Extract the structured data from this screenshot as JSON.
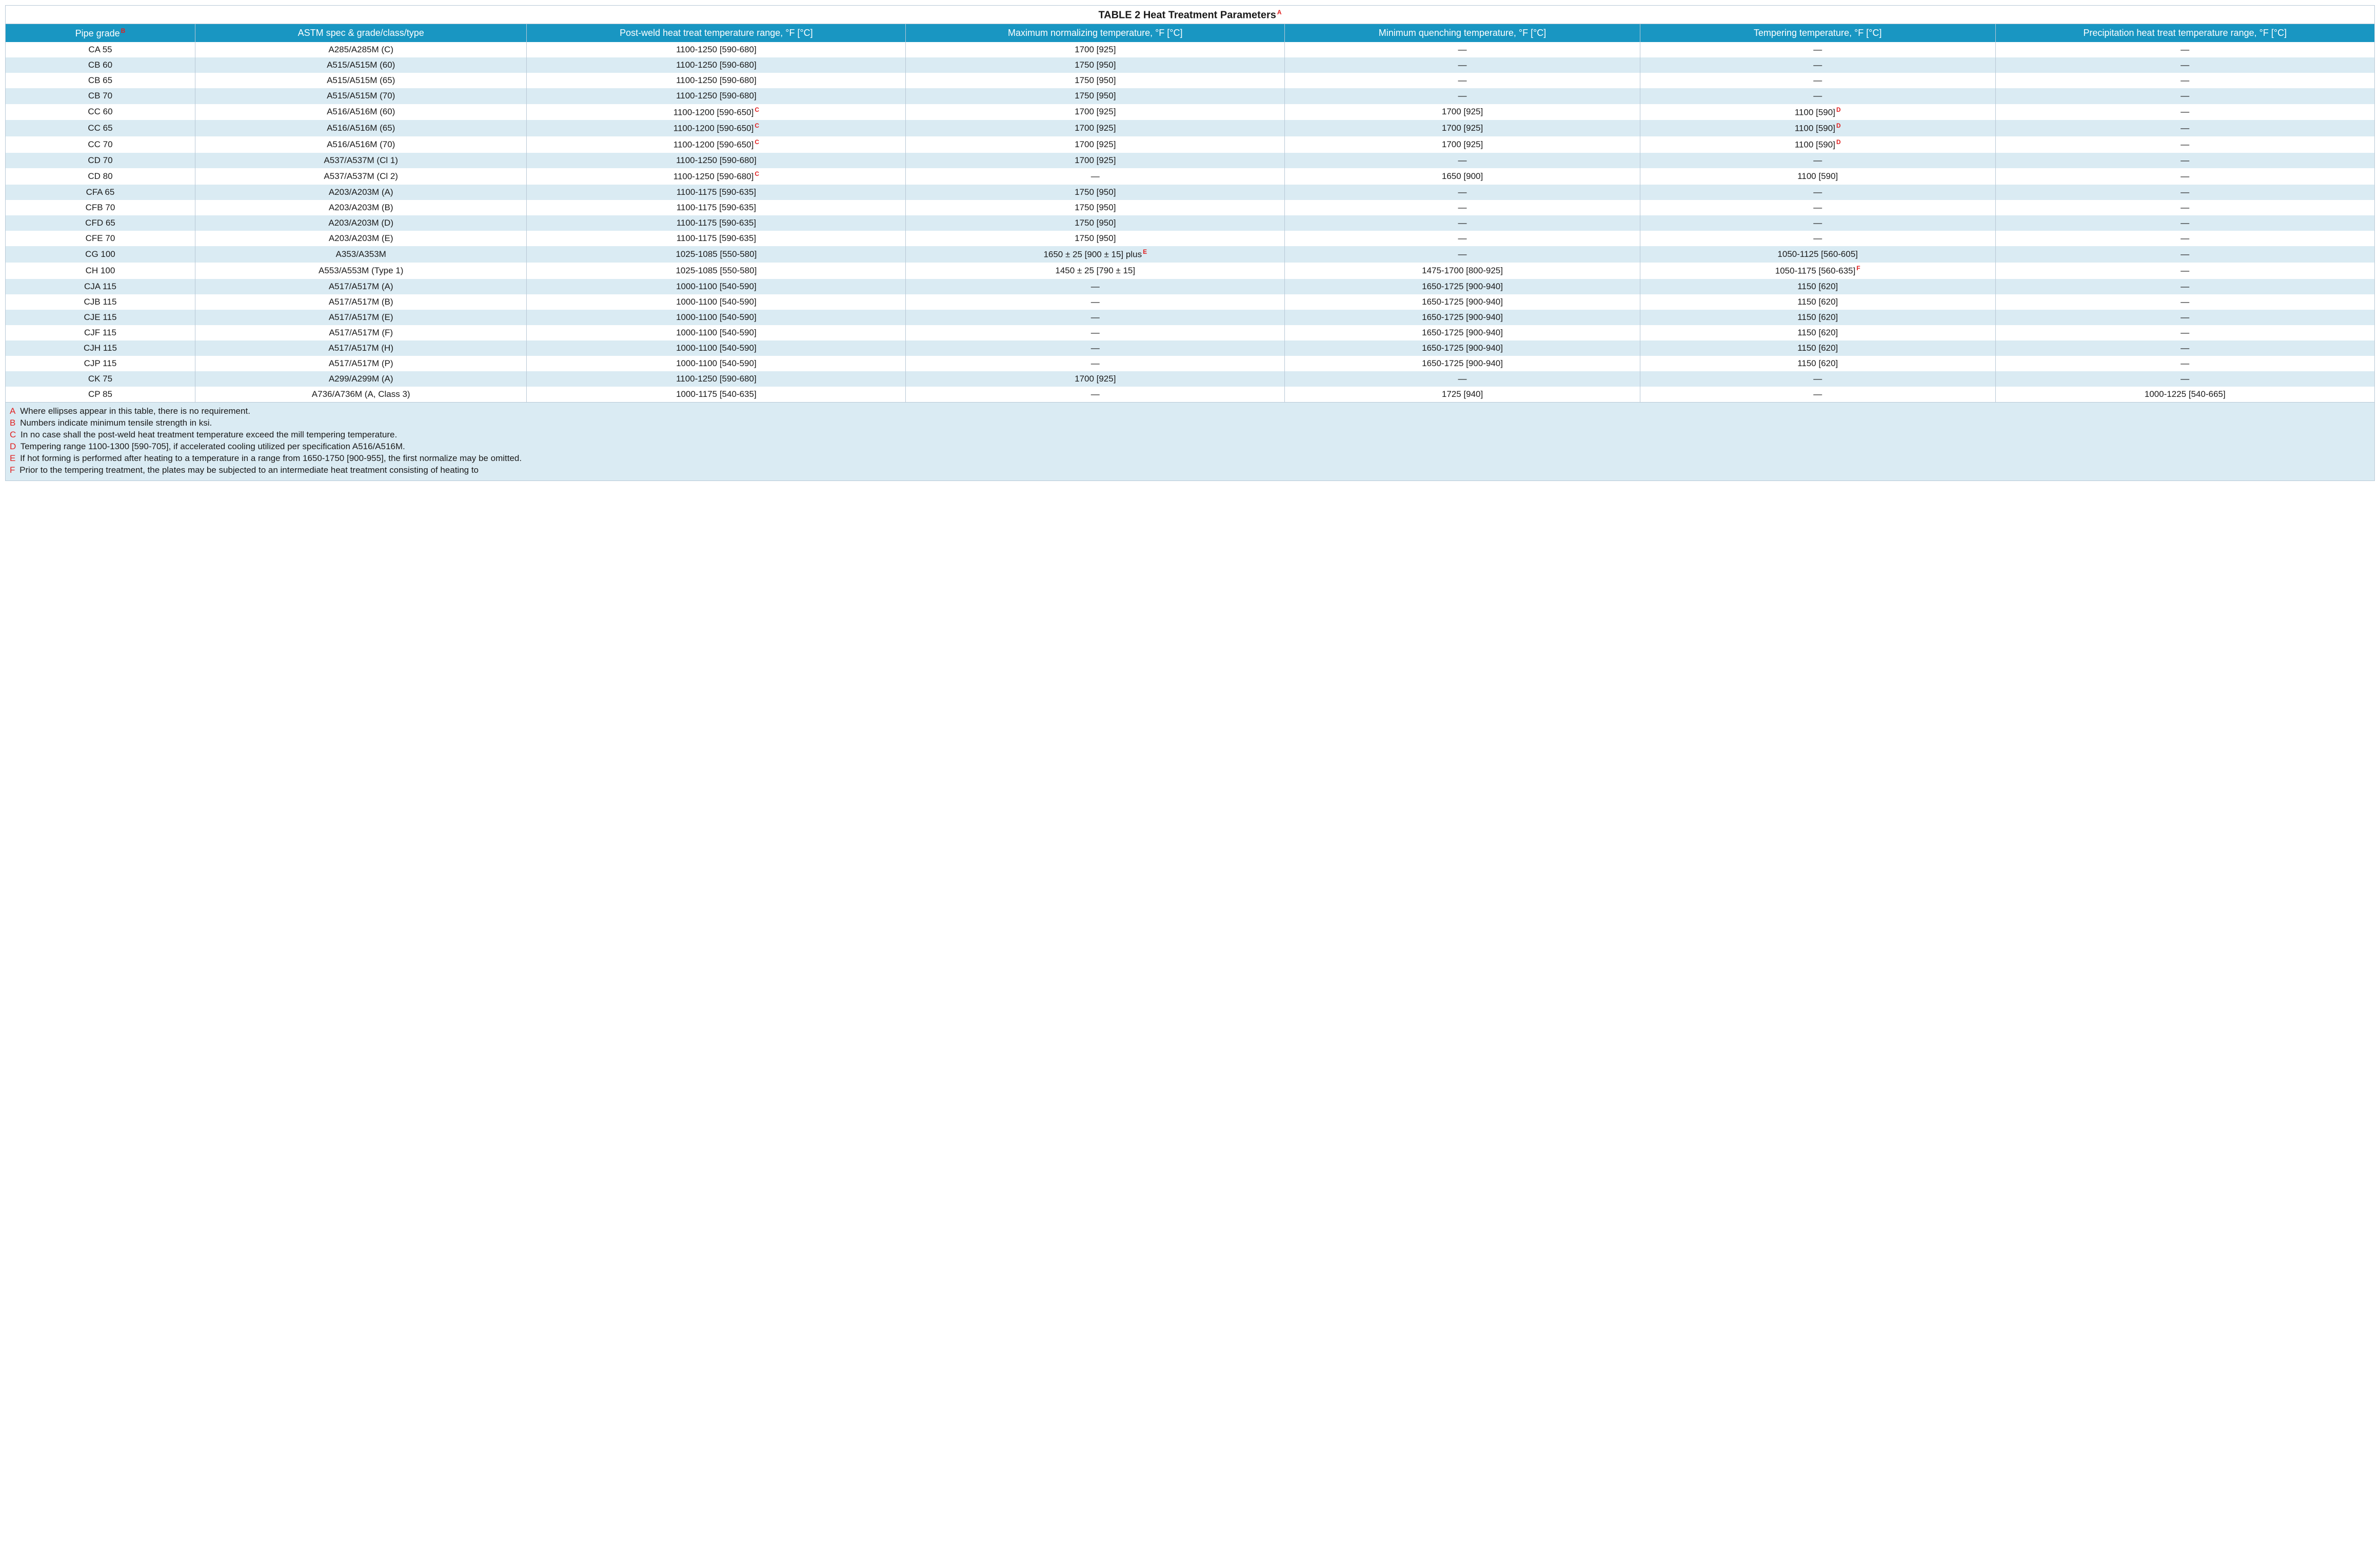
{
  "title": "TABLE 2 Heat Treatment Parameters",
  "title_sup": "A",
  "colors": {
    "header_bg": "#1996c2",
    "header_fg": "#ffffff",
    "row_alt_bg": "#daebf3",
    "row_bg": "#ffffff",
    "border": "#b8c8d6",
    "sup": "#e02020",
    "text": "#1a1a1a"
  },
  "col_widths_pct": [
    8,
    14,
    16,
    16,
    15,
    15,
    16
  ],
  "columns": [
    {
      "label": "Pipe grade",
      "sup": "B"
    },
    {
      "label": "ASTM spec & grade/class/type"
    },
    {
      "label": "Post-weld heat treat temperature range, °F [°C]"
    },
    {
      "label": "Maximum normalizing temperature, °F [°C]"
    },
    {
      "label": "Minimum quenching temperature, °F [°C]"
    },
    {
      "label": "Tempering temperature, °F [°C]"
    },
    {
      "label": "Precipitation heat treat temperature range, °F [°C]"
    }
  ],
  "rows": [
    {
      "c": [
        "CA 55",
        "A285/A285M (C)",
        "1100-1250 [590-680]",
        "1700 [925]",
        "—",
        "—",
        "—"
      ]
    },
    {
      "c": [
        "CB 60",
        "A515/A515M (60)",
        "1100-1250 [590-680]",
        "1750 [950]",
        "—",
        "—",
        "—"
      ]
    },
    {
      "c": [
        "CB 65",
        "A515/A515M (65)",
        "1100-1250 [590-680]",
        "1750 [950]",
        "—",
        "—",
        "—"
      ]
    },
    {
      "c": [
        "CB 70",
        "A515/A515M (70)",
        "1100-1250 [590-680]",
        "1750 [950]",
        "—",
        "—",
        "—"
      ]
    },
    {
      "c": [
        "CC 60",
        "A516/A516M (60)",
        "1100-1200 [590-650]",
        "1700 [925]",
        "1700 [925]",
        "1100 [590]",
        "—"
      ],
      "sup": {
        "2": "C",
        "5": "D"
      }
    },
    {
      "c": [
        "CC 65",
        "A516/A516M (65)",
        "1100-1200 [590-650]",
        "1700 [925]",
        "1700 [925]",
        "1100 [590]",
        "—"
      ],
      "sup": {
        "2": "C",
        "5": "D"
      }
    },
    {
      "c": [
        "CC 70",
        "A516/A516M (70)",
        "1100-1200 [590-650]",
        "1700 [925]",
        "1700 [925]",
        "1100 [590]",
        "—"
      ],
      "sup": {
        "2": "C",
        "5": "D"
      }
    },
    {
      "c": [
        "CD 70",
        "A537/A537M (Cl 1)",
        "1100-1250 [590-680]",
        "1700 [925]",
        "—",
        "—",
        "—"
      ]
    },
    {
      "c": [
        "CD 80",
        "A537/A537M (Cl 2)",
        "1100-1250 [590-680]",
        "—",
        "1650 [900]",
        "1100 [590]",
        "—"
      ],
      "sup": {
        "2": "C"
      }
    },
    {
      "c": [
        "CFA 65",
        "A203/A203M (A)",
        "1100-1175 [590-635]",
        "1750 [950]",
        "—",
        "—",
        "—"
      ]
    },
    {
      "c": [
        "CFB 70",
        "A203/A203M (B)",
        "1100-1175 [590-635]",
        "1750 [950]",
        "—",
        "—",
        "—"
      ]
    },
    {
      "c": [
        "CFD 65",
        "A203/A203M (D)",
        "1100-1175 [590-635]",
        "1750 [950]",
        "—",
        "—",
        "—"
      ]
    },
    {
      "c": [
        "CFE 70",
        "A203/A203M (E)",
        "1100-1175 [590-635]",
        "1750 [950]",
        "—",
        "—",
        "—"
      ]
    },
    {
      "c": [
        "CG 100",
        "A353/A353M",
        "1025-1085 [550-580]",
        "1650 ± 25 [900 ± 15] plus",
        "—",
        "1050-1125 [560-605]",
        "—"
      ],
      "sup": {
        "3": "E"
      }
    },
    {
      "c": [
        "CH 100",
        "A553/A553M (Type 1)",
        "1025-1085 [550-580]",
        "1450 ± 25 [790 ± 15]",
        "1475-1700 [800-925]",
        "1050-1175 [560-635]",
        "—"
      ],
      "sup": {
        "5": "F"
      }
    },
    {
      "c": [
        "CJA 115",
        "A517/A517M (A)",
        "1000-1100 [540-590]",
        "—",
        "1650-1725 [900-940]",
        "1150 [620]",
        "—"
      ]
    },
    {
      "c": [
        "CJB 115",
        "A517/A517M (B)",
        "1000-1100 [540-590]",
        "—",
        "1650-1725 [900-940]",
        "1150 [620]",
        "—"
      ]
    },
    {
      "c": [
        "CJE 115",
        "A517/A517M (E)",
        "1000-1100 [540-590]",
        "—",
        "1650-1725 [900-940]",
        "1150 [620]",
        "—"
      ]
    },
    {
      "c": [
        "CJF 115",
        "A517/A517M (F)",
        "1000-1100 [540-590]",
        "—",
        "1650-1725 [900-940]",
        "1150 [620]",
        "—"
      ]
    },
    {
      "c": [
        "CJH 115",
        "A517/A517M (H)",
        "1000-1100 [540-590]",
        "—",
        "1650-1725 [900-940]",
        "1150 [620]",
        "—"
      ]
    },
    {
      "c": [
        "CJP 115",
        "A517/A517M (P)",
        "1000-1100 [540-590]",
        "—",
        "1650-1725 [900-940]",
        "1150 [620]",
        "—"
      ]
    },
    {
      "c": [
        "CK 75",
        "A299/A299M (A)",
        "1100-1250 [590-680]",
        "1700 [925]",
        "—",
        "—",
        "—"
      ]
    },
    {
      "c": [
        "CP 85",
        "A736/A736M (A, Class 3)",
        "1000-1175 [540-635]",
        "—",
        "1725 [940]",
        "—",
        "1000-1225 [540-665]"
      ]
    }
  ],
  "footnotes": [
    {
      "letter": "A",
      "text": "Where ellipses appear in this table, there is no requirement."
    },
    {
      "letter": "B",
      "text": "Numbers indicate minimum tensile strength in ksi."
    },
    {
      "letter": "C",
      "text": "In no case shall the post-weld heat treatment temperature exceed the mill tempering temperature."
    },
    {
      "letter": "D",
      "text": "Tempering range 1100-1300 [590-705], if accelerated cooling utilized per specification A516/A516M."
    },
    {
      "letter": "E",
      "text": "If hot forming is performed after heating to a temperature in a range from 1650-1750 [900-955], the first normalize may be omitted."
    },
    {
      "letter": "F",
      "text": "Prior to the tempering treatment, the plates may be subjected to an intermediate heat treatment consisting of heating to"
    }
  ]
}
